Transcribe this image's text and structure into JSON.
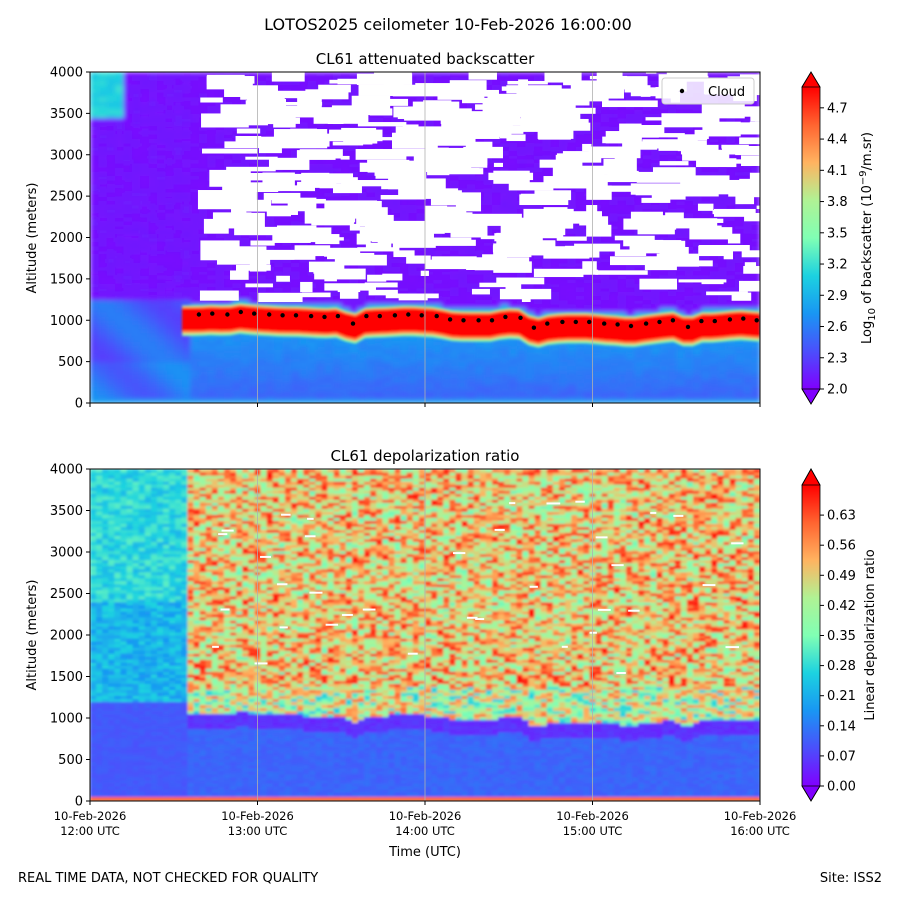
{
  "figure_title": "LOTOS2025 ceilometer 10-Feb-2026 16:00:00",
  "footer_left": "REAL TIME DATA, NOT CHECKED FOR QUALITY",
  "footer_right": "Site: ISS2",
  "colors": {
    "cloud_marker": "#000000",
    "grid": "#b0b0b0",
    "missing": "#ffffff"
  },
  "chart_data": [
    {
      "type": "heatmap",
      "title": "CL61 attenuated backscatter",
      "xlabel": "",
      "ylabel": "Altitude (meters)",
      "x_range_utc_hours": [
        12,
        16
      ],
      "ylim": [
        0,
        4000
      ],
      "y_ticks": [
        "0",
        "500",
        "1000",
        "1500",
        "2000",
        "2500",
        "3000",
        "3500",
        "4000"
      ],
      "colorbar": {
        "label_prefix": "Log",
        "label_sub": "10",
        "label_mid": " of backscatter (10",
        "label_sup": "−9",
        "label_suffix": "/m.sr)",
        "range": [
          2.0,
          4.9
        ],
        "ticks": [
          "2.0",
          "2.3",
          "2.6",
          "2.9",
          "3.2",
          "3.5",
          "3.8",
          "4.1",
          "4.4",
          "4.7"
        ],
        "colormap": "rainbow"
      },
      "legend": {
        "label": "Cloud",
        "position": "top-right"
      },
      "cloud_base": {
        "time_utc_hours": [
          12.65,
          12.73,
          12.82,
          12.9,
          12.98,
          13.07,
          13.15,
          13.23,
          13.32,
          13.4,
          13.48,
          13.57,
          13.65,
          13.73,
          13.82,
          13.9,
          13.98,
          14.07,
          14.15,
          14.23,
          14.32,
          14.4,
          14.48,
          14.57,
          14.65,
          14.73,
          14.82,
          14.9,
          14.98,
          15.07,
          15.15,
          15.23,
          15.32,
          15.4,
          15.48,
          15.57,
          15.65,
          15.73,
          15.82,
          15.9,
          15.98
        ],
        "altitude_m": [
          1070,
          1080,
          1070,
          1100,
          1080,
          1070,
          1060,
          1060,
          1050,
          1040,
          1050,
          960,
          1050,
          1050,
          1060,
          1070,
          1060,
          1050,
          1010,
          1000,
          1000,
          1000,
          1040,
          1030,
          910,
          960,
          980,
          980,
          980,
          960,
          950,
          930,
          960,
          980,
          1000,
          920,
          990,
          990,
          1010,
          1020,
          1000
        ]
      },
      "description": "Low-backscatter background (2.0-2.6) with a strong cloud layer near 900-1100 m (4.5-4.9+) from about 12:35 UTC onward; missing/white data aloft above 1200 m."
    },
    {
      "type": "heatmap",
      "title": "CL61 depolarization ratio",
      "xlabel": "Time (UTC)",
      "ylabel": "Altitude (meters)",
      "x_range_utc_hours": [
        12,
        16
      ],
      "ylim": [
        0,
        4000
      ],
      "x_ticks": [
        {
          "line1": "10-Feb-2026",
          "line2": "12:00 UTC"
        },
        {
          "line1": "10-Feb-2026",
          "line2": "13:00 UTC"
        },
        {
          "line1": "10-Feb-2026",
          "line2": "14:00 UTC"
        },
        {
          "line1": "10-Feb-2026",
          "line2": "15:00 UTC"
        },
        {
          "line1": "10-Feb-2026",
          "line2": "16:00 UTC"
        }
      ],
      "y_ticks": [
        "0",
        "500",
        "1000",
        "1500",
        "2000",
        "2500",
        "3000",
        "3500",
        "4000"
      ],
      "colorbar": {
        "label": "Linear depolarization ratio",
        "range": [
          0.0,
          0.7
        ],
        "ticks": [
          "0.00",
          "0.07",
          "0.14",
          "0.21",
          "0.28",
          "0.35",
          "0.42",
          "0.49",
          "0.56",
          "0.63"
        ],
        "colormap": "rainbow"
      },
      "description": "Low depolarization (0.05-0.1) below ~1100 m, mixed high values (0.3-0.7) aloft after ~12:35 UTC, moderate (0.15-0.3) before."
    }
  ]
}
